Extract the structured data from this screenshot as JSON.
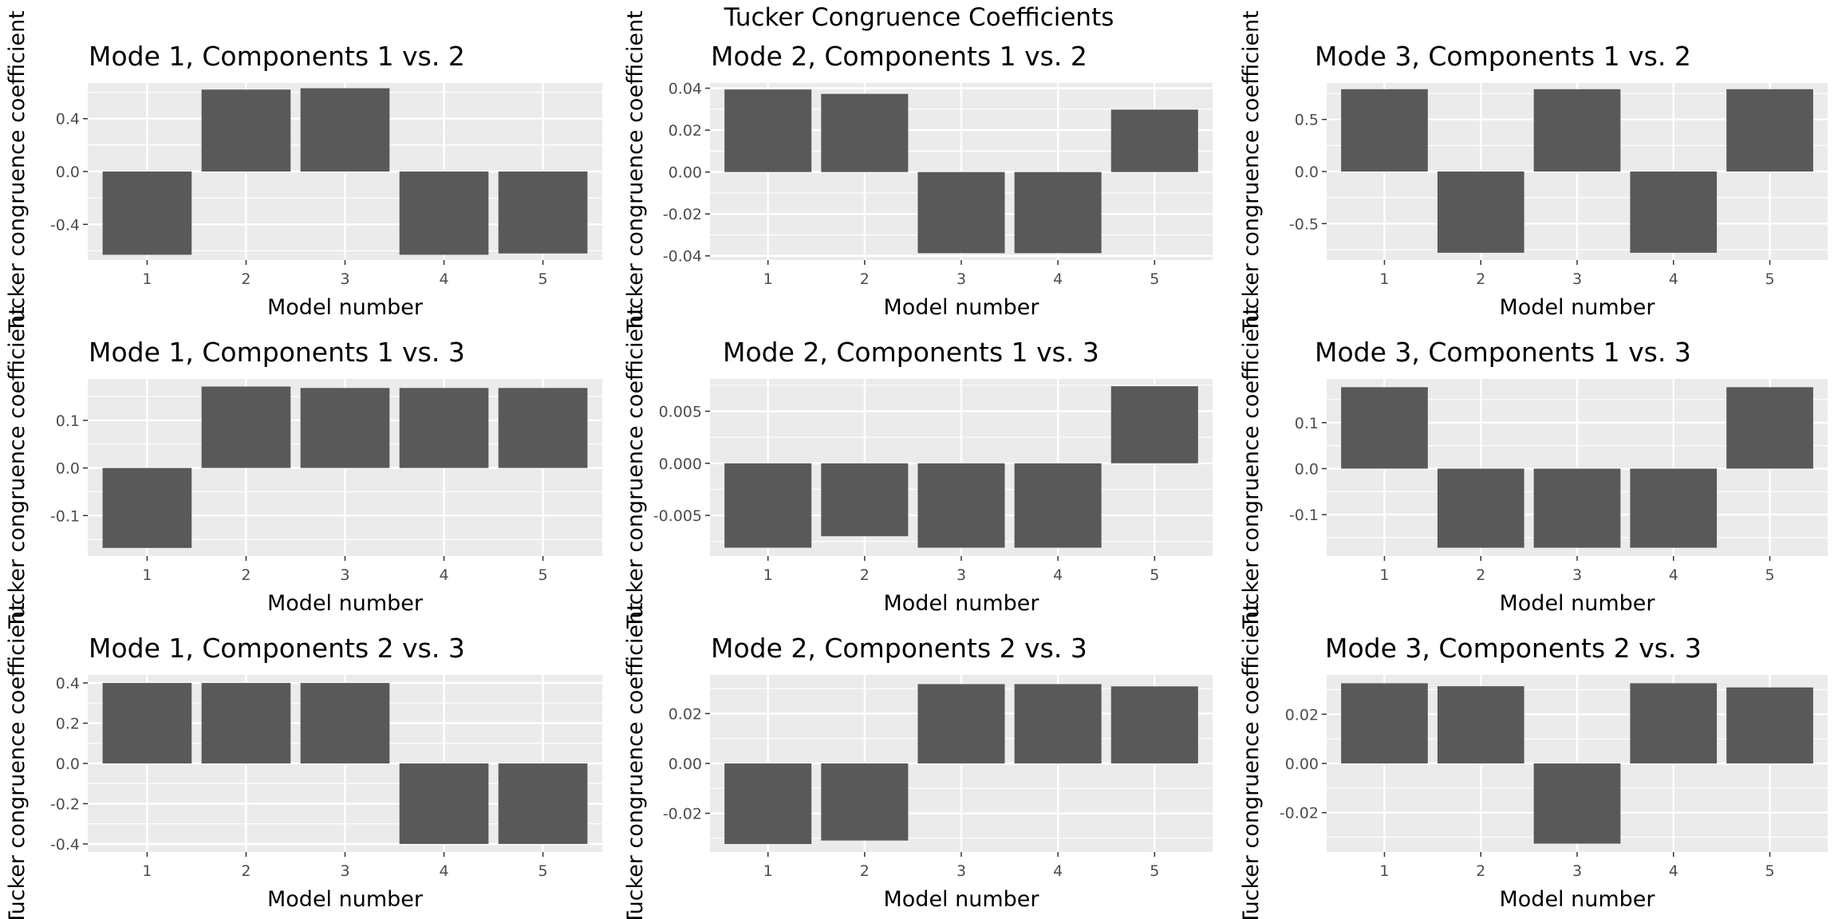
{
  "page": {
    "title": "Tucker Congruence Coefficients"
  },
  "style": {
    "panel_background": "#EBEBEB",
    "grid_color": "#FFFFFF",
    "bar_color": "#595959",
    "tick_color": "#4D4D4D"
  },
  "chart_data": [
    {
      "type": "bar",
      "title": "Mode 1, Components 1 vs. 2",
      "xlabel": "Model number",
      "ylabel": "Tucker congruence coefficient",
      "categories": [
        "1",
        "2",
        "3",
        "4",
        "5"
      ],
      "values": [
        -0.63,
        0.62,
        0.63,
        -0.63,
        -0.62
      ],
      "ylim": [
        -0.67,
        0.67
      ],
      "yticks": [
        -0.4,
        0.0,
        0.4
      ],
      "ytick_labels": [
        "-0.4",
        "0.0",
        "0.4"
      ],
      "grid": true
    },
    {
      "type": "bar",
      "title": "Mode 2, Components 1 vs. 2",
      "xlabel": "Model number",
      "ylabel": "Tucker congruence coefficient",
      "categories": [
        "1",
        "2",
        "3",
        "4",
        "5"
      ],
      "values": [
        0.0394,
        0.0373,
        -0.0387,
        -0.0387,
        0.0298
      ],
      "ylim": [
        -0.042,
        0.0425
      ],
      "yticks": [
        -0.04,
        -0.02,
        0.0,
        0.02,
        0.04
      ],
      "ytick_labels": [
        "-0.04",
        "-0.02",
        "0.00",
        "0.02",
        "0.04"
      ],
      "grid": true
    },
    {
      "type": "bar",
      "title": "Mode 3, Components 1 vs. 2",
      "xlabel": "Model number",
      "ylabel": "Tucker congruence coefficient",
      "categories": [
        "1",
        "2",
        "3",
        "4",
        "5"
      ],
      "values": [
        0.79,
        -0.78,
        0.79,
        -0.78,
        0.79
      ],
      "ylim": [
        -0.85,
        0.85
      ],
      "yticks": [
        -0.5,
        0.0,
        0.5
      ],
      "ytick_labels": [
        "-0.5",
        "0.0",
        "0.5"
      ],
      "grid": true
    },
    {
      "type": "bar",
      "title": "Mode 1, Components 1 vs. 3",
      "xlabel": "Model number",
      "ylabel": "Tucker congruence coefficient",
      "categories": [
        "1",
        "2",
        "3",
        "4",
        "5"
      ],
      "values": [
        -0.168,
        0.171,
        0.168,
        0.168,
        0.168
      ],
      "ylim": [
        -0.185,
        0.187
      ],
      "yticks": [
        -0.1,
        0.0,
        0.1
      ],
      "ytick_labels": [
        "-0.1",
        "0.0",
        "0.1"
      ],
      "grid": true
    },
    {
      "type": "bar",
      "title": "Mode 2, Components 1 vs. 3",
      "xlabel": "Model number",
      "ylabel": "Tucker congruence coefficient",
      "categories": [
        "1",
        "2",
        "3",
        "4",
        "5"
      ],
      "values": [
        -0.0081,
        -0.007,
        -0.0081,
        -0.0081,
        0.0074
      ],
      "ylim": [
        -0.0089,
        0.0081
      ],
      "yticks": [
        -0.005,
        0.0,
        0.005
      ],
      "ytick_labels": [
        "-0.005",
        "0.000",
        "0.005"
      ],
      "grid": true
    },
    {
      "type": "bar",
      "title": "Mode 3, Components 1 vs. 3",
      "xlabel": "Model number",
      "ylabel": "Tucker congruence coefficient",
      "categories": [
        "1",
        "2",
        "3",
        "4",
        "5"
      ],
      "values": [
        0.177,
        -0.172,
        -0.172,
        -0.172,
        0.177
      ],
      "ylim": [
        -0.19,
        0.195
      ],
      "yticks": [
        -0.1,
        0.0,
        0.1
      ],
      "ytick_labels": [
        "-0.1",
        "0.0",
        "0.1"
      ],
      "grid": true
    },
    {
      "type": "bar",
      "title": "Mode 1, Components 2 vs. 3",
      "xlabel": "Model number",
      "ylabel": "Tucker congruence coefficient",
      "categories": [
        "1",
        "2",
        "3",
        "4",
        "5"
      ],
      "values": [
        0.4,
        0.4,
        0.4,
        -0.4,
        -0.4
      ],
      "ylim": [
        -0.44,
        0.44
      ],
      "yticks": [
        -0.4,
        -0.2,
        0.0,
        0.2,
        0.4
      ],
      "ytick_labels": [
        "-0.4",
        "-0.2",
        "0.0",
        "0.2",
        "0.4"
      ],
      "grid": true
    },
    {
      "type": "bar",
      "title": "Mode 2, Components 2 vs. 3",
      "xlabel": "Model number",
      "ylabel": "Tucker congruence coefficient",
      "categories": [
        "1",
        "2",
        "3",
        "4",
        "5"
      ],
      "values": [
        -0.0323,
        -0.0309,
        0.0318,
        0.0318,
        0.0309
      ],
      "ylim": [
        -0.0355,
        0.0355
      ],
      "yticks": [
        -0.02,
        0.0,
        0.02
      ],
      "ytick_labels": [
        "-0.02",
        "0.00",
        "0.02"
      ],
      "grid": true
    },
    {
      "type": "bar",
      "title": "Mode 3, Components 2 vs. 3",
      "xlabel": "Model number",
      "ylabel": "Tucker congruence coefficient",
      "categories": [
        "1",
        "2",
        "3",
        "4",
        "5"
      ],
      "values": [
        0.0326,
        0.0314,
        -0.0326,
        0.0326,
        0.0309
      ],
      "ylim": [
        -0.036,
        0.036
      ],
      "yticks": [
        -0.02,
        0.0,
        0.02
      ],
      "ytick_labels": [
        "-0.02",
        "0.00",
        "0.02"
      ],
      "grid": true
    }
  ]
}
